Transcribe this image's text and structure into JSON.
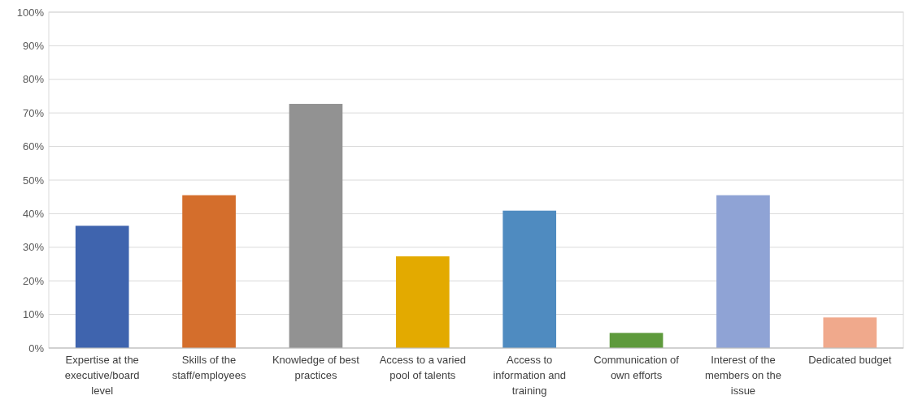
{
  "chart_data": {
    "type": "bar",
    "categories": [
      "Expertise at the executive/board level",
      "Skills of the staff/employees",
      "Knowledge of best practices",
      "Access to a varied pool of talents",
      "Access to information and training",
      "Communication of own efforts",
      "Interest of the members on the issue",
      "Dedicated budget"
    ],
    "values": [
      36.4,
      45.5,
      72.7,
      27.3,
      40.9,
      4.5,
      45.5,
      9.1
    ],
    "colors": [
      "#3f64ae",
      "#d46e2c",
      "#929292",
      "#e3aa00",
      "#4f8bc0",
      "#5e9a3c",
      "#8fa3d5",
      "#f0a98c"
    ],
    "ylim": [
      0,
      100
    ],
    "yticks": [
      {
        "value": 0,
        "label": "0%"
      },
      {
        "value": 10,
        "label": "10%"
      },
      {
        "value": 20,
        "label": "20%"
      },
      {
        "value": 30,
        "label": "30%"
      },
      {
        "value": 40,
        "label": "40%"
      },
      {
        "value": 50,
        "label": "50%"
      },
      {
        "value": 60,
        "label": "60%"
      },
      {
        "value": 70,
        "label": "70%"
      },
      {
        "value": 80,
        "label": "80%"
      },
      {
        "value": 90,
        "label": "90%"
      },
      {
        "value": 100,
        "label": "100%"
      }
    ],
    "grid": "y"
  }
}
